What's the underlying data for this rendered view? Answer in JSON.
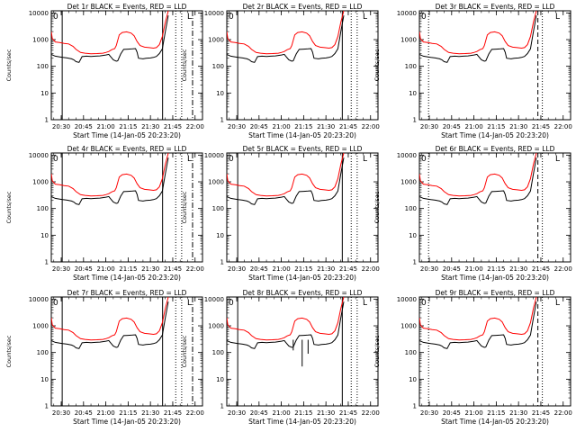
{
  "chart_data": {
    "type": "line",
    "layout": {
      "rows": 3,
      "cols": 3
    },
    "ylabel": "Counts/sec",
    "xlabel": "Start Time (14-Jan-05 20:23:20)",
    "yscale": "log",
    "ylim": [
      1,
      12000
    ],
    "y_ticks": [
      {
        "value": 1,
        "label": "1"
      },
      {
        "value": 10,
        "label": "10"
      },
      {
        "value": 100,
        "label": "100"
      },
      {
        "value": 1000,
        "label": "1000"
      },
      {
        "value": 10000,
        "label": "10000"
      }
    ],
    "xlim": [
      "20:23:20",
      "22:05:00"
    ],
    "x_ticks": [
      "20:30",
      "20:45",
      "21:00",
      "21:15",
      "21:30",
      "21:45",
      "22:00"
    ],
    "legend_marks": [
      "0",
      "L"
    ],
    "panels": [
      {
        "title": "Det 1r BLACK = Events, RED = LLD",
        "vlines": [
          {
            "t": "20:30:40",
            "style": "solid"
          },
          {
            "t": "21:38:10",
            "style": "solid"
          },
          {
            "t": "21:47:00",
            "style": "dotted"
          },
          {
            "t": "21:51:00",
            "style": "dotted"
          },
          {
            "t": "21:58:20",
            "style": "dashdot"
          }
        ],
        "spikes": []
      },
      {
        "title": "Det 2r BLACK = Events, RED = LLD",
        "vlines": [
          {
            "t": "20:30:40",
            "style": "solid"
          },
          {
            "t": "21:41:00",
            "style": "solid"
          },
          {
            "t": "21:47:00",
            "style": "dotted"
          },
          {
            "t": "21:51:00",
            "style": "dotted"
          }
        ],
        "spikes": []
      },
      {
        "title": "Det 3r BLACK = Events, RED = LLD",
        "vlines": [
          {
            "t": "20:29:30",
            "style": "dotted"
          },
          {
            "t": "21:43:00",
            "style": "dashed"
          },
          {
            "t": "21:46:00",
            "style": "dotted"
          }
        ],
        "spikes": []
      },
      {
        "title": "Det 4r BLACK = Events, RED = LLD",
        "vlines": [
          {
            "t": "20:30:40",
            "style": "solid"
          },
          {
            "t": "21:38:10",
            "style": "solid"
          },
          {
            "t": "21:47:00",
            "style": "dotted"
          },
          {
            "t": "21:51:00",
            "style": "dotted"
          },
          {
            "t": "21:58:20",
            "style": "dashdot"
          }
        ],
        "spikes": []
      },
      {
        "title": "Det 5r BLACK = Events, RED = LLD",
        "vlines": [
          {
            "t": "20:30:40",
            "style": "solid"
          },
          {
            "t": "21:41:00",
            "style": "solid"
          },
          {
            "t": "21:47:00",
            "style": "dotted"
          },
          {
            "t": "21:51:00",
            "style": "dotted"
          }
        ],
        "spikes": []
      },
      {
        "title": "Det 6r BLACK = Events, RED = LLD",
        "vlines": [
          {
            "t": "20:29:30",
            "style": "dotted"
          },
          {
            "t": "21:43:00",
            "style": "dashed"
          },
          {
            "t": "21:46:00",
            "style": "dotted"
          }
        ],
        "spikes": []
      },
      {
        "title": "Det 7r BLACK = Events, RED = LLD",
        "vlines": [
          {
            "t": "20:30:40",
            "style": "solid"
          },
          {
            "t": "21:38:10",
            "style": "solid"
          },
          {
            "t": "21:47:00",
            "style": "dotted"
          },
          {
            "t": "21:51:00",
            "style": "dotted"
          },
          {
            "t": "21:58:20",
            "style": "dashdot"
          }
        ],
        "spikes": []
      },
      {
        "title": "Det 8r BLACK = Events, RED = LLD",
        "vlines": [
          {
            "t": "20:30:40",
            "style": "solid"
          },
          {
            "t": "21:41:00",
            "style": "solid"
          },
          {
            "t": "21:47:00",
            "style": "dotted"
          },
          {
            "t": "21:51:00",
            "style": "dotted"
          }
        ],
        "spikes": [
          {
            "t": "21:08:00",
            "lo": 120
          },
          {
            "t": "21:14:00",
            "lo": 30
          },
          {
            "t": "21:18:00",
            "lo": 90
          }
        ]
      },
      {
        "title": "Det 9r BLACK = Events, RED = LLD",
        "vlines": [
          {
            "t": "20:29:30",
            "style": "dotted"
          },
          {
            "t": "21:43:00",
            "style": "dashed"
          },
          {
            "t": "21:46:00",
            "style": "dotted"
          }
        ],
        "spikes": []
      }
    ],
    "series": [
      {
        "name": "Events",
        "color": "#000000",
        "points": [
          [
            "20:23:20",
            280
          ],
          [
            "20:26:00",
            240
          ],
          [
            "20:29:00",
            225
          ],
          [
            "20:31:00",
            215
          ],
          [
            "20:34:00",
            205
          ],
          [
            "20:37:00",
            190
          ],
          [
            "20:38:30",
            175
          ],
          [
            "20:40:00",
            150
          ],
          [
            "20:42:00",
            140
          ],
          [
            "20:44:00",
            230
          ],
          [
            "20:47:00",
            240
          ],
          [
            "20:50:00",
            235
          ],
          [
            "20:53:00",
            240
          ],
          [
            "20:56:00",
            245
          ],
          [
            "21:00:00",
            265
          ],
          [
            "21:02:00",
            280
          ],
          [
            "21:03:00",
            240
          ],
          [
            "21:05:00",
            175
          ],
          [
            "21:07:00",
            155
          ],
          [
            "21:08:00",
            160
          ],
          [
            "21:10:00",
            290
          ],
          [
            "21:12:00",
            430
          ],
          [
            "21:15:00",
            440
          ],
          [
            "21:18:00",
            450
          ],
          [
            "21:20:00",
            460
          ],
          [
            "21:21:00",
            340
          ],
          [
            "21:22:00",
            200
          ],
          [
            "21:25:00",
            190
          ],
          [
            "21:27:00",
            200
          ],
          [
            "21:30:00",
            205
          ],
          [
            "21:32:00",
            215
          ],
          [
            "21:34:00",
            235
          ],
          [
            "21:36:00",
            300
          ],
          [
            "21:38:00",
            450
          ],
          [
            "21:40:00",
            2000
          ],
          [
            "21:42:00",
            8000
          ]
        ]
      },
      {
        "name": "LLD",
        "color": "#ff0000",
        "points": [
          [
            "20:23:20",
            2000
          ],
          [
            "20:24:00",
            1100
          ],
          [
            "20:26:00",
            820
          ],
          [
            "20:29:00",
            780
          ],
          [
            "20:32:00",
            720
          ],
          [
            "20:35:00",
            690
          ],
          [
            "20:38:00",
            560
          ],
          [
            "20:40:00",
            430
          ],
          [
            "20:43:00",
            330
          ],
          [
            "20:46:00",
            310
          ],
          [
            "20:50:00",
            295
          ],
          [
            "20:54:00",
            300
          ],
          [
            "20:58:00",
            310
          ],
          [
            "21:00:00",
            330
          ],
          [
            "21:02:00",
            360
          ],
          [
            "21:04:00",
            420
          ],
          [
            "21:06:00",
            460
          ],
          [
            "21:07:00",
            600
          ],
          [
            "21:09:00",
            1500
          ],
          [
            "21:11:00",
            1850
          ],
          [
            "21:14:00",
            1950
          ],
          [
            "21:17:00",
            1750
          ],
          [
            "21:19:00",
            1400
          ],
          [
            "21:21:00",
            850
          ],
          [
            "21:23:00",
            600
          ],
          [
            "21:26:00",
            520
          ],
          [
            "21:29:00",
            500
          ],
          [
            "21:32:00",
            480
          ],
          [
            "21:34:00",
            500
          ],
          [
            "21:36:00",
            650
          ],
          [
            "21:38:00",
            1300
          ],
          [
            "21:40:00",
            4500
          ],
          [
            "21:42:00",
            12000
          ]
        ]
      }
    ]
  }
}
